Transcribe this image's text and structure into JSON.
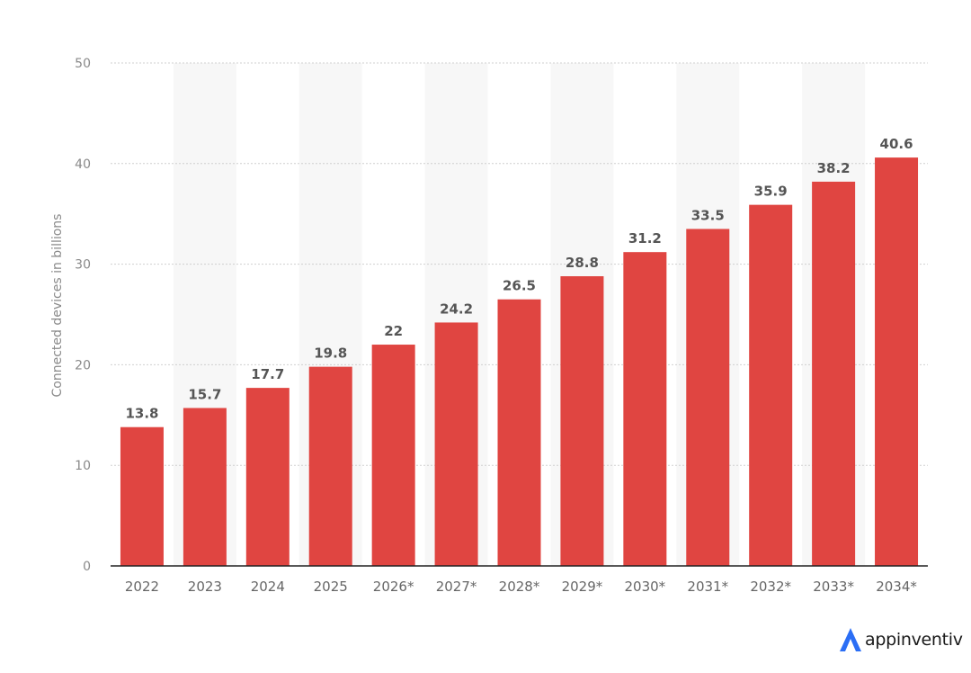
{
  "brand": {
    "name": "appinventiv",
    "icon": "appinventiv-logo-icon",
    "logo_color": "#2b6ef5"
  },
  "colors": {
    "bar": "#e04541",
    "grid": "#cfcfcf",
    "band": "#f7f7f7",
    "axis": "#222222"
  },
  "chart_data": {
    "type": "bar",
    "categories": [
      "2022",
      "2023",
      "2024",
      "2025",
      "2026*",
      "2027*",
      "2028*",
      "2029*",
      "2030*",
      "2031*",
      "2032*",
      "2033*",
      "2034*"
    ],
    "values": [
      13.8,
      15.7,
      17.7,
      19.8,
      22,
      24.2,
      26.5,
      28.8,
      31.2,
      33.5,
      35.9,
      38.2,
      40.6
    ],
    "data_labels": [
      "13.8",
      "15.7",
      "17.7",
      "19.8",
      "22",
      "24.2",
      "26.5",
      "28.8",
      "31.2",
      "33.5",
      "35.9",
      "38.2",
      "40.6"
    ],
    "ylabel": "Connected devices in billions",
    "xlabel": "",
    "ylim": [
      0,
      50
    ],
    "yticks": [
      0,
      10,
      20,
      30,
      40,
      50
    ],
    "grid": true,
    "legend": "none"
  }
}
